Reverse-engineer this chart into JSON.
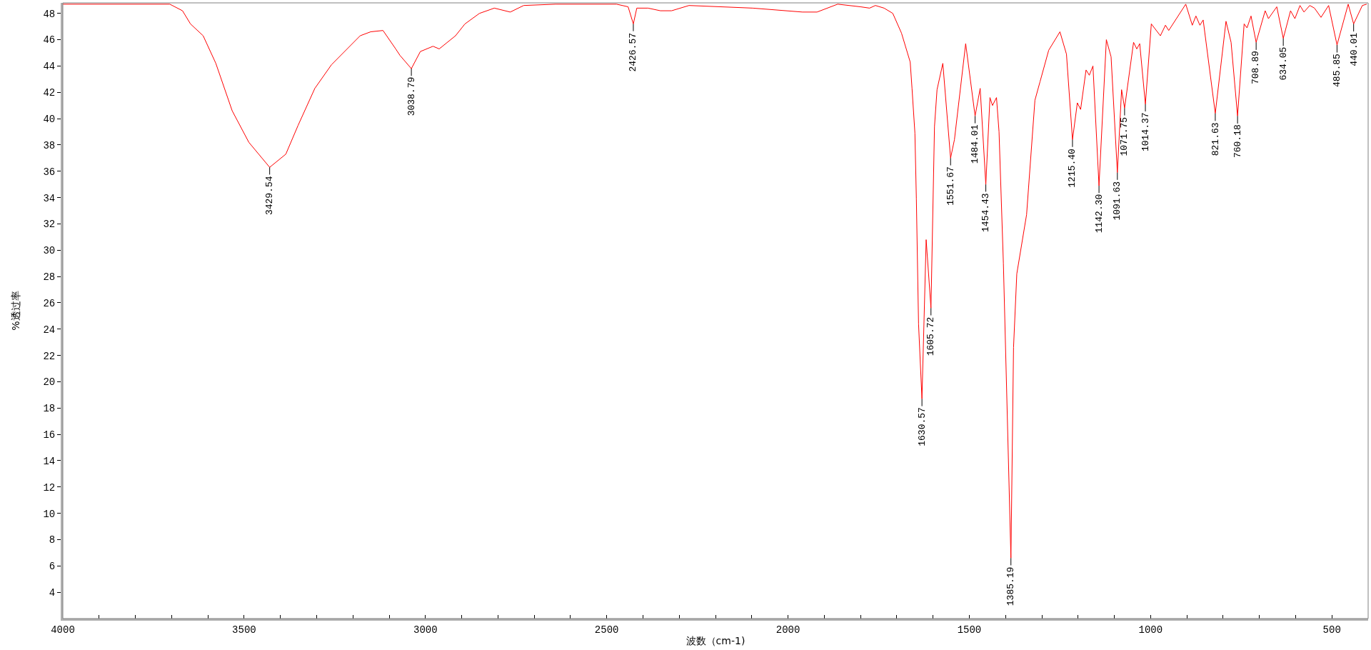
{
  "chart_data": {
    "type": "line",
    "xlabel": "波数（cm-1)",
    "ylabel": "%透过率",
    "xlim": [
      4000,
      400
    ],
    "ylim": [
      2,
      48.8
    ],
    "xticks": [
      4000,
      {
        "value": 3900,
        "label": null
      },
      {
        "value": 3800,
        "label": null
      },
      {
        "value": 3700,
        "label": null
      },
      {
        "value": 3600,
        "label": null
      },
      3500,
      {
        "value": 3400,
        "label": null
      },
      {
        "value": 3300,
        "label": null
      },
      {
        "value": 3200,
        "label": null
      },
      {
        "value": 3100,
        "label": null
      },
      3000,
      {
        "value": 2900,
        "label": null
      },
      {
        "value": 2800,
        "label": null
      },
      {
        "value": 2700,
        "label": null
      },
      {
        "value": 2600,
        "label": null
      },
      2500,
      {
        "value": 2400,
        "label": null
      },
      {
        "value": 2300,
        "label": null
      },
      {
        "value": 2200,
        "label": null
      },
      {
        "value": 2100,
        "label": null
      },
      2000,
      {
        "value": 1900,
        "label": null
      },
      {
        "value": 1800,
        "label": null
      },
      {
        "value": 1700,
        "label": null
      },
      {
        "value": 1600,
        "label": null
      },
      1500,
      {
        "value": 1400,
        "label": null
      },
      {
        "value": 1300,
        "label": null
      },
      {
        "value": 1200,
        "label": null
      },
      {
        "value": 1100,
        "label": null
      },
      1000,
      {
        "value": 900,
        "label": null
      },
      {
        "value": 800,
        "label": null
      },
      {
        "value": 700,
        "label": null
      },
      {
        "value": 600,
        "label": null
      },
      500
    ],
    "yticks": [
      4,
      6,
      8,
      10,
      12,
      14,
      16,
      18,
      20,
      22,
      24,
      26,
      28,
      30,
      32,
      34,
      36,
      38,
      40,
      42,
      44,
      46,
      48
    ],
    "grid": false,
    "marker": "none",
    "line_style": "solid",
    "series": [
      {
        "color": "#ff0000",
        "x": [
          4000,
          3705,
          3670,
          3648,
          3613,
          3578,
          3533,
          3487,
          3429.54,
          3385,
          3351,
          3305,
          3259,
          3180,
          3151,
          3117,
          3082,
          3070,
          3038.79,
          3014,
          2979,
          2962,
          2917,
          2891,
          2851,
          2810,
          2766,
          2729,
          2641,
          2473,
          2441,
          2426.57,
          2417,
          2386,
          2352,
          2321,
          2273,
          2097,
          1960,
          1920,
          1863,
          1800,
          1775,
          1759,
          1735,
          1711,
          1687,
          1663,
          1658,
          1650,
          1646,
          1640,
          1630.57,
          1619,
          1605.72,
          1596,
          1589,
          1573,
          1551.67,
          1541,
          1510,
          1484.01,
          1470,
          1454.43,
          1443,
          1436,
          1425,
          1418,
          1406,
          1385.19,
          1378,
          1369,
          1342,
          1319,
          1305,
          1281,
          1250,
          1232,
          1215.4,
          1202,
          1193,
          1178,
          1169,
          1159,
          1142.3,
          1122,
          1109,
          1091.63,
          1080,
          1071.75,
          1047,
          1038,
          1030,
          1014.37,
          998,
          973,
          959,
          950,
          903,
          885,
          875,
          864,
          855,
          821.63,
          792,
          778,
          760.18,
          742,
          734,
          723,
          708.89,
          684,
          675,
          652,
          634.05,
          614,
          602,
          588,
          577,
          561,
          548,
          530,
          509,
          485.85,
          455,
          440.01,
          416,
          404
        ],
        "values": [
          48.7,
          48.7,
          48.2,
          47.2,
          46.3,
          44.2,
          40.6,
          38.2,
          36.3,
          37.3,
          39.5,
          42.3,
          44.1,
          46.3,
          46.6,
          46.7,
          45.3,
          44.8,
          43.8,
          45.1,
          45.5,
          45.3,
          46.3,
          47.2,
          48.0,
          48.4,
          48.1,
          48.6,
          48.7,
          48.7,
          48.5,
          47.2,
          48.4,
          48.4,
          48.2,
          48.2,
          48.6,
          48.4,
          48.1,
          48.1,
          48.7,
          48.5,
          48.4,
          48.6,
          48.4,
          48.0,
          46.5,
          44.3,
          42.3,
          38.9,
          33.9,
          24.4,
          18.7,
          30.8,
          25.6,
          39.4,
          42.2,
          44.2,
          37.0,
          38.4,
          45.7,
          40.2,
          42.3,
          35.0,
          41.6,
          41.0,
          41.6,
          39.0,
          29.0,
          6.6,
          22.6,
          28.2,
          32.7,
          41.4,
          42.8,
          45.2,
          46.6,
          44.9,
          38.4,
          41.2,
          40.7,
          43.7,
          43.3,
          44.0,
          34.9,
          46.0,
          44.7,
          35.9,
          42.2,
          40.8,
          45.8,
          45.3,
          45.7,
          41.1,
          47.2,
          46.3,
          47.1,
          46.7,
          48.7,
          47.1,
          47.8,
          47.1,
          47.5,
          40.4,
          47.4,
          45.8,
          40.2,
          47.2,
          46.9,
          47.8,
          45.8,
          48.2,
          47.6,
          48.5,
          46.1,
          48.2,
          47.6,
          48.6,
          48.1,
          48.6,
          48.4,
          47.7,
          48.6,
          45.6,
          48.7,
          47.2,
          48.6,
          48.7
        ]
      }
    ],
    "annotations": [
      {
        "text": "3429.54",
        "x": 3429.54,
        "y": 36.3
      },
      {
        "text": "3038.79",
        "x": 3038.79,
        "y": 43.8
      },
      {
        "text": "2426.57",
        "x": 2426.57,
        "y": 47.2
      },
      {
        "text": "1630.57",
        "x": 1630.57,
        "y": 18.7
      },
      {
        "text": "1605.72",
        "x": 1605.72,
        "y": 25.6
      },
      {
        "text": "1551.67",
        "x": 1551.67,
        "y": 37.0
      },
      {
        "text": "1484.01",
        "x": 1484.01,
        "y": 40.2
      },
      {
        "text": "1454.43",
        "x": 1454.43,
        "y": 35.0
      },
      {
        "text": "1385.19",
        "x": 1385.19,
        "y": 6.6
      },
      {
        "text": "1215.40",
        "x": 1215.4,
        "y": 38.4
      },
      {
        "text": "1142.30",
        "x": 1142.3,
        "y": 34.9
      },
      {
        "text": "1091.63",
        "x": 1091.63,
        "y": 35.9
      },
      {
        "text": "1071.75",
        "x": 1071.75,
        "y": 40.8
      },
      {
        "text": "1014.37",
        "x": 1014.37,
        "y": 41.1
      },
      {
        "text": "821.63",
        "x": 821.63,
        "y": 40.4
      },
      {
        "text": "760.18",
        "x": 760.18,
        "y": 40.2
      },
      {
        "text": "708.89",
        "x": 708.89,
        "y": 45.8
      },
      {
        "text": "634.05",
        "x": 634.05,
        "y": 46.1
      },
      {
        "text": "485.85",
        "x": 485.85,
        "y": 45.6
      },
      {
        "text": "440.01",
        "x": 440.01,
        "y": 47.2
      }
    ]
  }
}
